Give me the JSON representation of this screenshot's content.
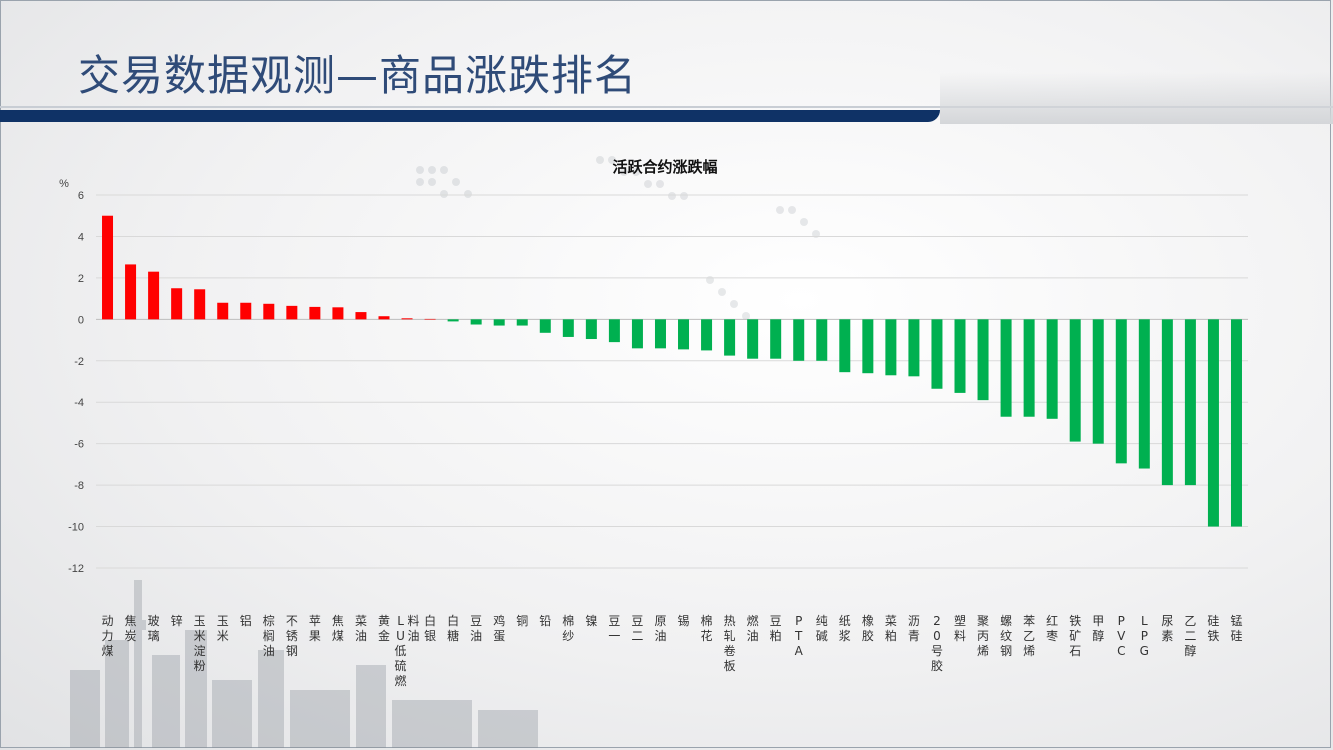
{
  "slide": {
    "title": "交易数据观测—商品涨跌排名"
  },
  "colors": {
    "positive": "#ff0000",
    "negative": "#00b050",
    "title": "#2f4b78",
    "band": "#0f3266"
  },
  "chart_data": {
    "type": "bar",
    "title": "活跃合约涨跌幅",
    "ylabel": "%",
    "ylim": [
      -12,
      6
    ],
    "yticks": [
      6,
      4,
      2,
      0,
      -2,
      -4,
      -6,
      -8,
      -10,
      -12
    ],
    "grid": true,
    "categories": [
      "动力煤",
      "焦炭",
      "玻璃",
      "锌",
      "玉米淀粉",
      "玉米",
      "铝",
      "棕榈油",
      "不锈钢",
      "苹果",
      "焦煤",
      "菜油",
      "黄金",
      "LU低硫燃料油",
      "白银",
      "白糖",
      "豆油",
      "鸡蛋",
      "铜",
      "铅",
      "棉纱",
      "镍",
      "豆一",
      "豆二",
      "原油",
      "锡",
      "棉花",
      "热轧卷板",
      "燃油",
      "豆粕",
      "PTA",
      "纯碱",
      "纸浆",
      "橡胶",
      "菜粕",
      "沥青",
      "20号胶",
      "塑料",
      "聚丙烯",
      "螺纹钢",
      "苯乙烯",
      "红枣",
      "铁矿石",
      "甲醇",
      "PVC",
      "LPG",
      "尿素",
      "乙二醇",
      "硅铁",
      "锰硅"
    ],
    "values": [
      5.0,
      2.65,
      2.3,
      1.5,
      1.45,
      0.8,
      0.8,
      0.75,
      0.65,
      0.6,
      0.58,
      0.35,
      0.15,
      0.05,
      0.02,
      -0.1,
      -0.25,
      -0.3,
      -0.3,
      -0.65,
      -0.85,
      -0.95,
      -1.1,
      -1.4,
      -1.4,
      -1.45,
      -1.5,
      -1.75,
      -1.9,
      -1.9,
      -2.0,
      -2.0,
      -2.55,
      -2.6,
      -2.7,
      -2.75,
      -3.35,
      -3.55,
      -3.9,
      -4.7,
      -4.7,
      -4.8,
      -5.9,
      -6.0,
      -6.95,
      -7.2,
      -8.0,
      -8.0,
      -10.0,
      -10.0
    ]
  }
}
